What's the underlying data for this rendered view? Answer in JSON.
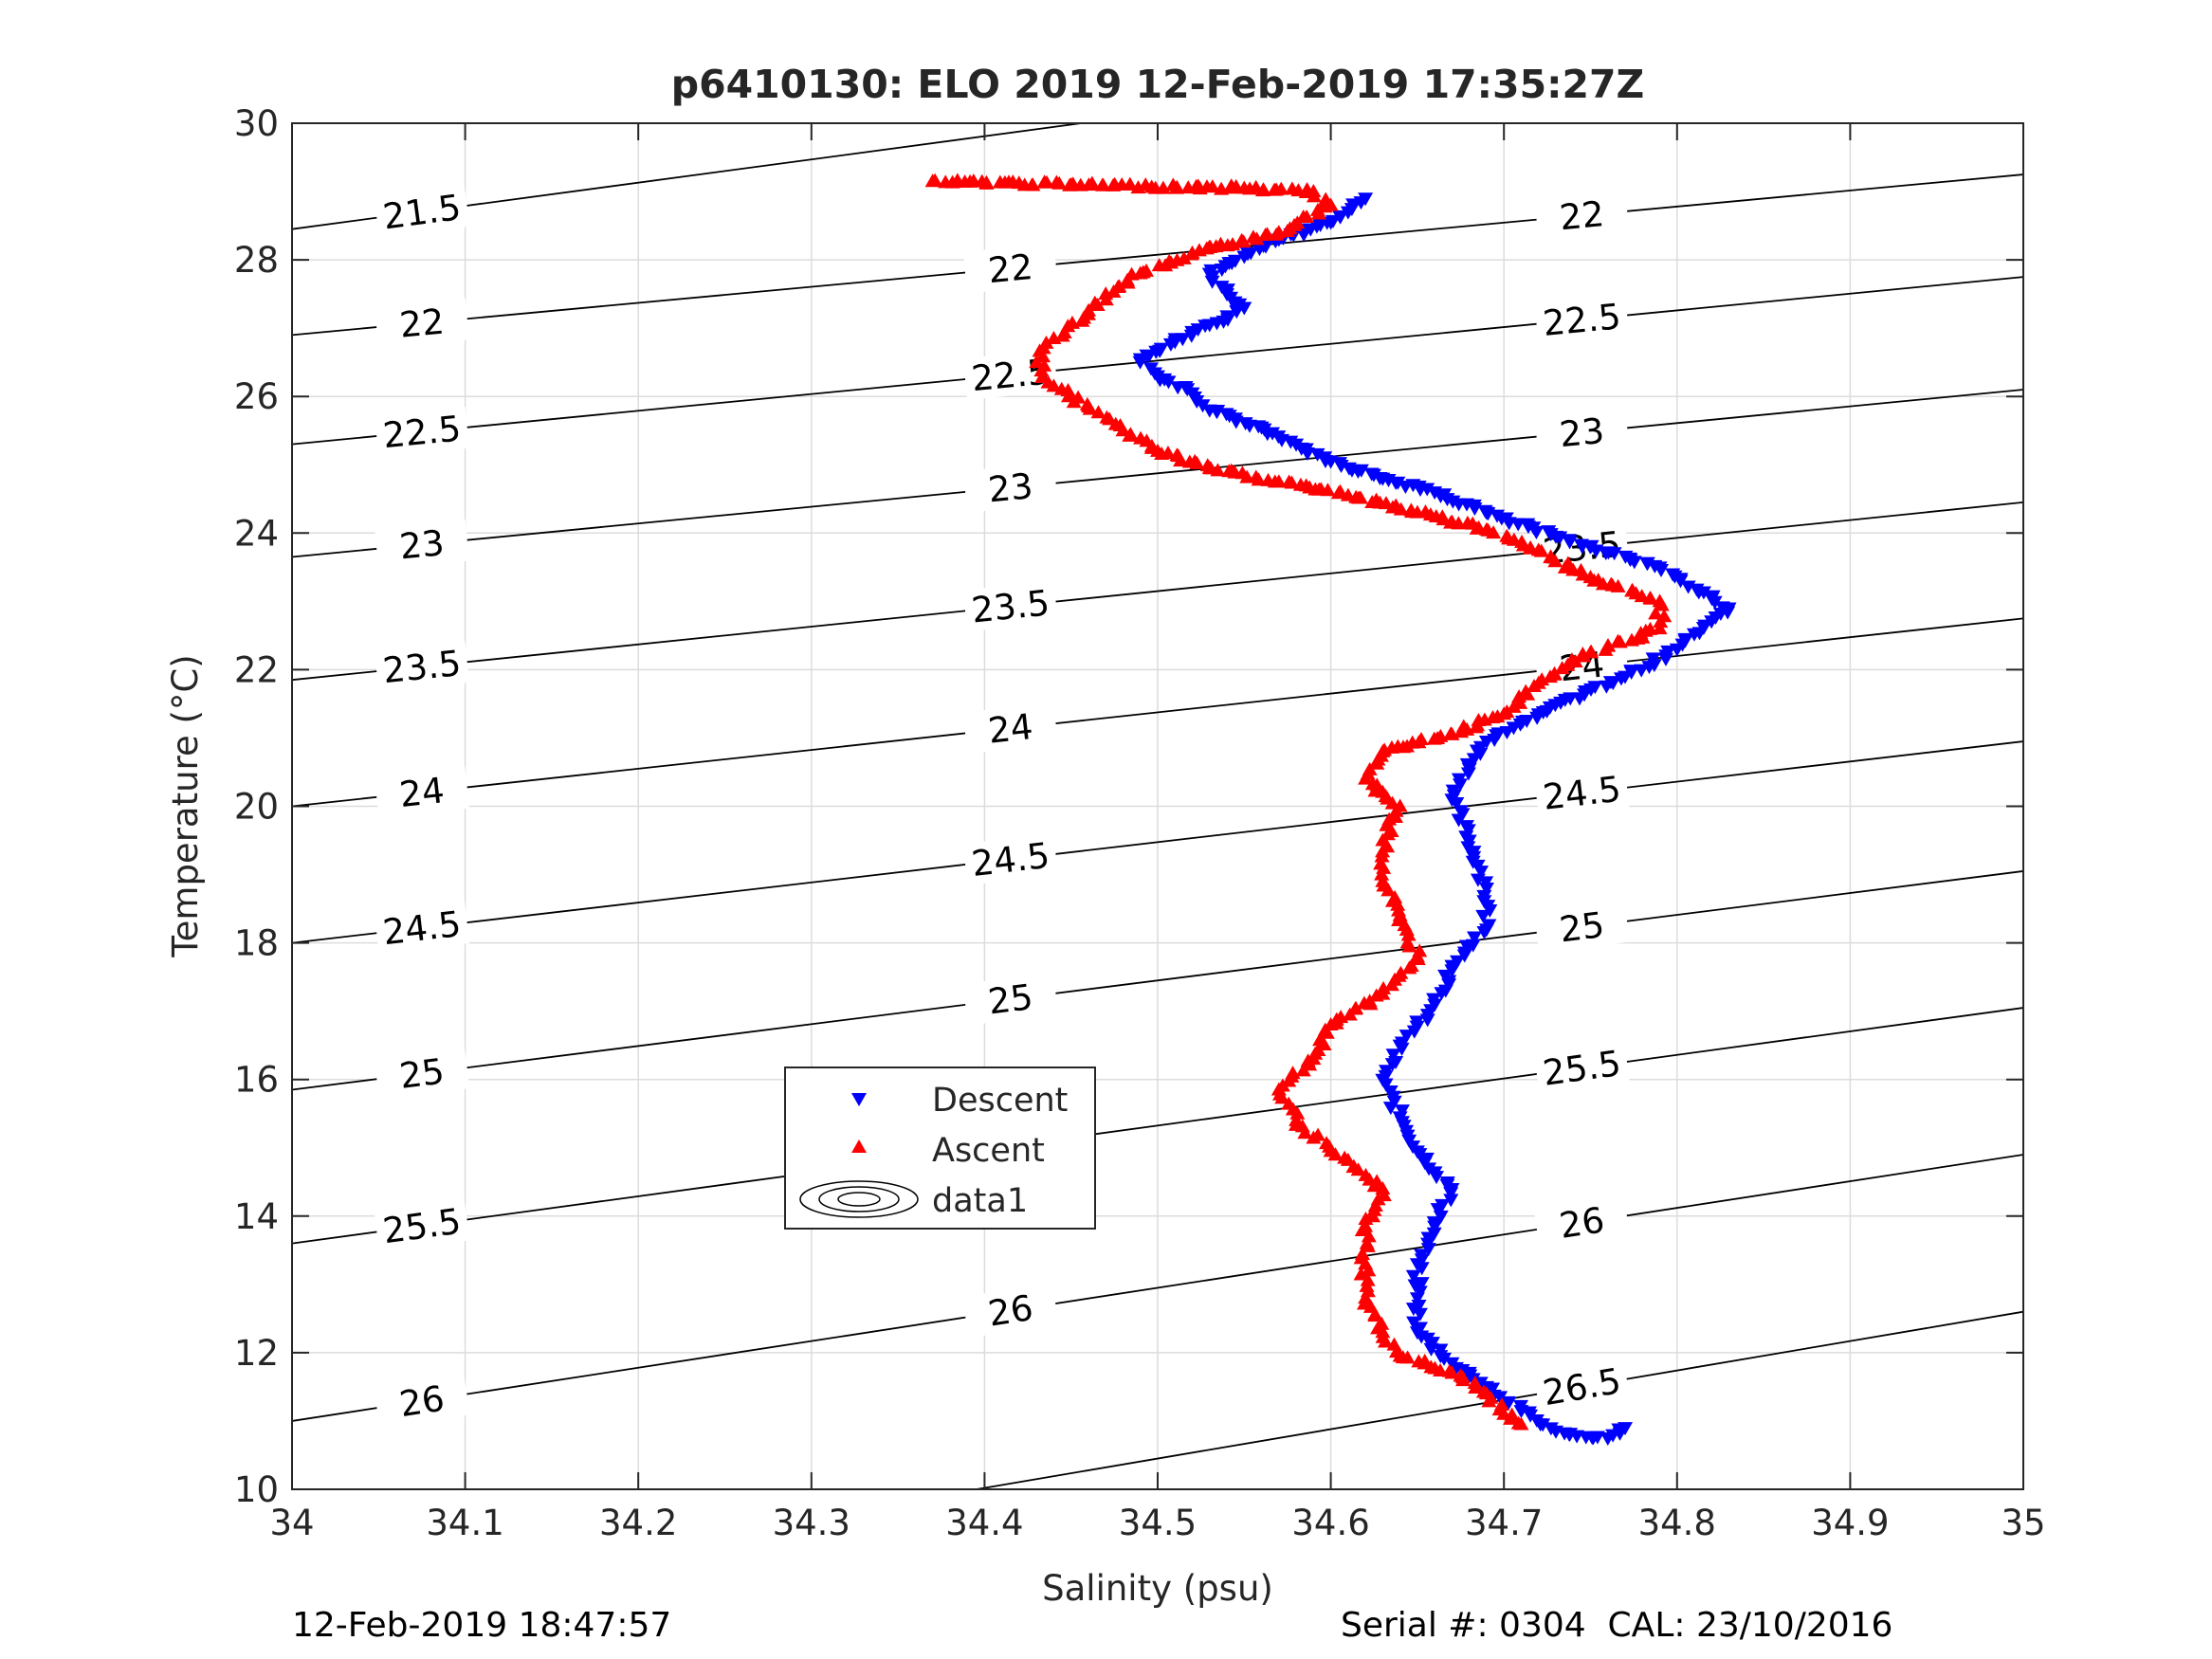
{
  "chart_data": {
    "type": "scatter",
    "title": "p6410130: ELO 2019 12-Feb-2019 17:35:27Z",
    "xlabel": "Salinity (psu)",
    "ylabel": "Temperature (°C)",
    "xlim": [
      34,
      35
    ],
    "ylim": [
      10,
      30
    ],
    "grid": true,
    "x_ticks": [
      "34",
      "34.1",
      "34.2",
      "34.3",
      "34.4",
      "34.5",
      "34.6",
      "34.7",
      "34.8",
      "34.9",
      "35"
    ],
    "y_ticks": [
      "10",
      "12",
      "14",
      "16",
      "18",
      "20",
      "22",
      "24",
      "26",
      "28",
      "30"
    ],
    "legend_position": "lower-left inside",
    "legend": [
      "Descent",
      "Ascent",
      "data1"
    ],
    "series": [
      {
        "name": "Descent",
        "marker": "triangle-down",
        "color": "#0000ff",
        "points": [
          [
            34.62,
            28.9
          ],
          [
            34.61,
            28.7
          ],
          [
            34.6,
            28.55
          ],
          [
            34.57,
            28.3
          ],
          [
            34.55,
            28.05
          ],
          [
            34.53,
            27.8
          ],
          [
            34.54,
            27.5
          ],
          [
            34.55,
            27.3
          ],
          [
            34.53,
            27.05
          ],
          [
            34.51,
            26.8
          ],
          [
            34.49,
            26.55
          ],
          [
            34.5,
            26.3
          ],
          [
            34.52,
            26.05
          ],
          [
            34.53,
            25.8
          ],
          [
            34.56,
            25.55
          ],
          [
            34.58,
            25.3
          ],
          [
            34.6,
            25.05
          ],
          [
            34.63,
            24.8
          ],
          [
            34.66,
            24.6
          ],
          [
            34.69,
            24.3
          ],
          [
            34.73,
            23.95
          ],
          [
            34.79,
            23.5
          ],
          [
            34.83,
            22.9
          ],
          [
            34.8,
            22.3
          ],
          [
            34.77,
            21.9
          ],
          [
            34.72,
            21.35
          ],
          [
            34.69,
            20.95
          ],
          [
            34.68,
            20.55
          ],
          [
            34.67,
            20.1
          ],
          [
            34.68,
            19.5
          ],
          [
            34.69,
            18.8
          ],
          [
            34.69,
            18.2
          ],
          [
            34.67,
            17.6
          ],
          [
            34.66,
            17.1
          ],
          [
            34.64,
            16.5
          ],
          [
            34.63,
            16.0
          ],
          [
            34.64,
            15.45
          ],
          [
            34.65,
            14.95
          ],
          [
            34.67,
            14.4
          ],
          [
            34.66,
            13.85
          ],
          [
            34.65,
            13.3
          ],
          [
            34.65,
            12.8
          ],
          [
            34.65,
            12.3
          ],
          [
            34.67,
            11.85
          ],
          [
            34.69,
            11.5
          ],
          [
            34.71,
            11.15
          ],
          [
            34.73,
            10.85
          ],
          [
            34.76,
            10.75
          ],
          [
            34.77,
            10.9
          ]
        ]
      },
      {
        "name": "Ascent",
        "marker": "triangle-up",
        "color": "#ff0000",
        "points": [
          [
            34.37,
            29.15
          ],
          [
            34.45,
            29.1
          ],
          [
            34.55,
            29.05
          ],
          [
            34.59,
            29.0
          ],
          [
            34.6,
            28.8
          ],
          [
            34.57,
            28.4
          ],
          [
            34.52,
            28.1
          ],
          [
            34.49,
            27.8
          ],
          [
            34.47,
            27.5
          ],
          [
            34.46,
            27.2
          ],
          [
            34.44,
            26.85
          ],
          [
            34.43,
            26.5
          ],
          [
            34.44,
            26.15
          ],
          [
            34.46,
            25.85
          ],
          [
            34.48,
            25.5
          ],
          [
            34.5,
            25.2
          ],
          [
            34.53,
            24.95
          ],
          [
            34.57,
            24.75
          ],
          [
            34.61,
            24.55
          ],
          [
            34.65,
            24.3
          ],
          [
            34.69,
            24.05
          ],
          [
            34.72,
            23.75
          ],
          [
            34.75,
            23.35
          ],
          [
            34.79,
            23.0
          ],
          [
            34.79,
            22.6
          ],
          [
            34.75,
            22.25
          ],
          [
            34.72,
            21.8
          ],
          [
            34.7,
            21.35
          ],
          [
            34.67,
            21.05
          ],
          [
            34.63,
            20.8
          ],
          [
            34.62,
            20.4
          ],
          [
            34.64,
            20.0
          ],
          [
            34.63,
            19.5
          ],
          [
            34.63,
            18.9
          ],
          [
            34.64,
            18.4
          ],
          [
            34.65,
            17.8
          ],
          [
            34.63,
            17.25
          ],
          [
            34.6,
            16.8
          ],
          [
            34.59,
            16.3
          ],
          [
            34.57,
            15.85
          ],
          [
            34.58,
            15.4
          ],
          [
            34.6,
            14.95
          ],
          [
            34.63,
            14.4
          ],
          [
            34.62,
            13.85
          ],
          [
            34.62,
            13.3
          ],
          [
            34.62,
            12.8
          ],
          [
            34.63,
            12.3
          ],
          [
            34.64,
            11.95
          ],
          [
            34.67,
            11.7
          ],
          [
            34.69,
            11.4
          ],
          [
            34.7,
            11.1
          ],
          [
            34.71,
            10.95
          ]
        ]
      }
    ],
    "density_contours": [
      {
        "label": "21.5",
        "t_at_s34": 28.45,
        "t_at_s35": 31.85
      },
      {
        "label": "22",
        "t_at_s34": 26.9,
        "t_at_s35": 29.25
      },
      {
        "label": "22.5",
        "t_at_s34": 25.3,
        "t_at_s35": 27.75
      },
      {
        "label": "23",
        "t_at_s34": 23.65,
        "t_at_s35": 26.1
      },
      {
        "label": "23.5",
        "t_at_s34": 21.85,
        "t_at_s35": 24.45
      },
      {
        "label": "24",
        "t_at_s34": 20.0,
        "t_at_s35": 22.75
      },
      {
        "label": "24.5",
        "t_at_s34": 18.0,
        "t_at_s35": 20.95
      },
      {
        "label": "25",
        "t_at_s34": 15.85,
        "t_at_s35": 19.05
      },
      {
        "label": "25.5",
        "t_at_s34": 13.6,
        "t_at_s35": 17.05
      },
      {
        "label": "26",
        "t_at_s34": 11.0,
        "t_at_s35": 14.9
      },
      {
        "label": "26.5",
        "t_at_s34": 8.3,
        "t_at_s35": 12.6
      }
    ]
  },
  "footer": {
    "timestamp": "12-Feb-2019 18:47:57",
    "serial": "Serial #: 0304  CAL: 23/10/2016"
  }
}
